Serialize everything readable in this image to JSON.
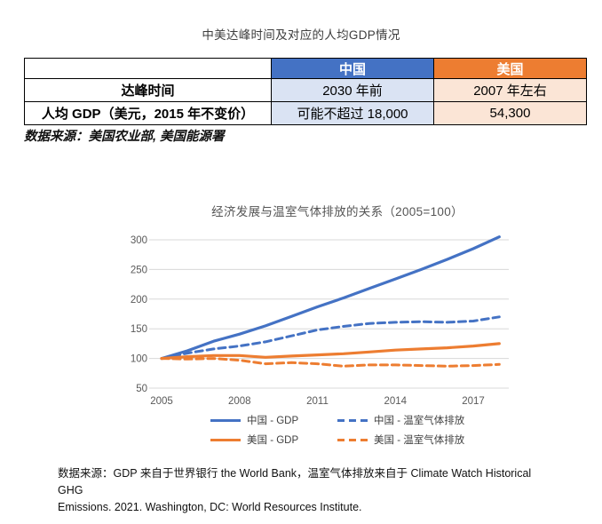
{
  "page_title": "中美达峰时间及对应的人均GDP情况",
  "table": {
    "col_headers": [
      "",
      "中国",
      "美国"
    ],
    "rows": [
      {
        "label": "达峰时间",
        "china": "2030 年前",
        "usa": "2007 年左右"
      },
      {
        "label": "人均 GDP（美元，2015 年不变价）",
        "china": "可能不超过 18,000",
        "usa": "54,300"
      }
    ],
    "source_note": "数据来源：美国农业部, 美国能源署",
    "colors": {
      "china_header": "#4472C4",
      "usa_header": "#ED7D31",
      "china_cell": "#DAE3F3",
      "usa_cell": "#FBE5D6"
    }
  },
  "chart_data": {
    "type": "line",
    "title": "经济发展与温室气体排放的关系（2005=100）",
    "x": [
      2005,
      2006,
      2007,
      2008,
      2009,
      2010,
      2011,
      2012,
      2013,
      2014,
      2015,
      2016,
      2017,
      2018
    ],
    "x_tick_labels": [
      "2005",
      "2008",
      "2011",
      "2014",
      "2017"
    ],
    "y_ticks": [
      50,
      100,
      150,
      200,
      250,
      300
    ],
    "ylim": [
      50,
      300
    ],
    "grid": "horizontal",
    "legend_position": "bottom",
    "series": [
      {
        "name": "中国 - GDP",
        "color": "#4472C4",
        "dash": false,
        "values": [
          100,
          113,
          129,
          141,
          155,
          171,
          187,
          202,
          218,
          234,
          250,
          267,
          285,
          305
        ]
      },
      {
        "name": "中国 - 温室气体排放",
        "color": "#4472C4",
        "dash": true,
        "values": [
          100,
          109,
          116,
          121,
          128,
          138,
          148,
          154,
          159,
          161,
          162,
          161,
          163,
          170
        ]
      },
      {
        "name": "美国 - GDP",
        "color": "#ED7D31",
        "dash": false,
        "values": [
          100,
          103,
          105,
          105,
          102,
          104,
          106,
          108,
          111,
          114,
          116,
          118,
          121,
          125
        ]
      },
      {
        "name": "美国 - 温室气体排放",
        "color": "#ED7D31",
        "dash": true,
        "values": [
          100,
          99,
          100,
          97,
          91,
          93,
          91,
          87,
          89,
          89,
          88,
          87,
          88,
          90
        ]
      }
    ]
  },
  "footnote": {
    "lines": [
      "数据来源：GDP 来自于世界银行 the World Bank，温室气体排放来自于 Climate Watch Historical GHG",
      "Emissions. 2021. Washington, DC: World Resources Institute."
    ]
  }
}
